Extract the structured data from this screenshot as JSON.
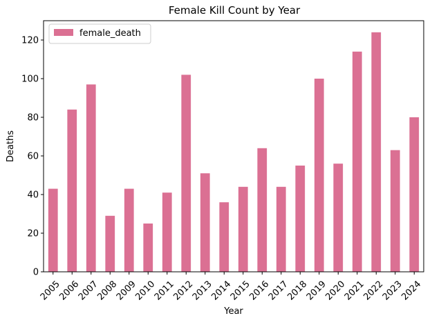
{
  "chart_data": {
    "type": "bar",
    "title": "Female Kill Count by Year",
    "xlabel": "Year",
    "ylabel": "Deaths",
    "categories": [
      "2005",
      "2006",
      "2007",
      "2008",
      "2009",
      "2010",
      "2011",
      "2012",
      "2013",
      "2014",
      "2015",
      "2016",
      "2017",
      "2018",
      "2019",
      "2020",
      "2021",
      "2022",
      "2023",
      "2024"
    ],
    "series": [
      {
        "name": "female_death",
        "color": "#db7093",
        "values": [
          43,
          84,
          97,
          29,
          43,
          25,
          41,
          102,
          51,
          36,
          44,
          64,
          44,
          55,
          100,
          56,
          114,
          124,
          63,
          80
        ]
      }
    ],
    "ylim": [
      0,
      130
    ],
    "yticks": [
      0,
      20,
      40,
      60,
      80,
      100,
      120
    ],
    "grid": false,
    "legend_position": "top-left"
  }
}
